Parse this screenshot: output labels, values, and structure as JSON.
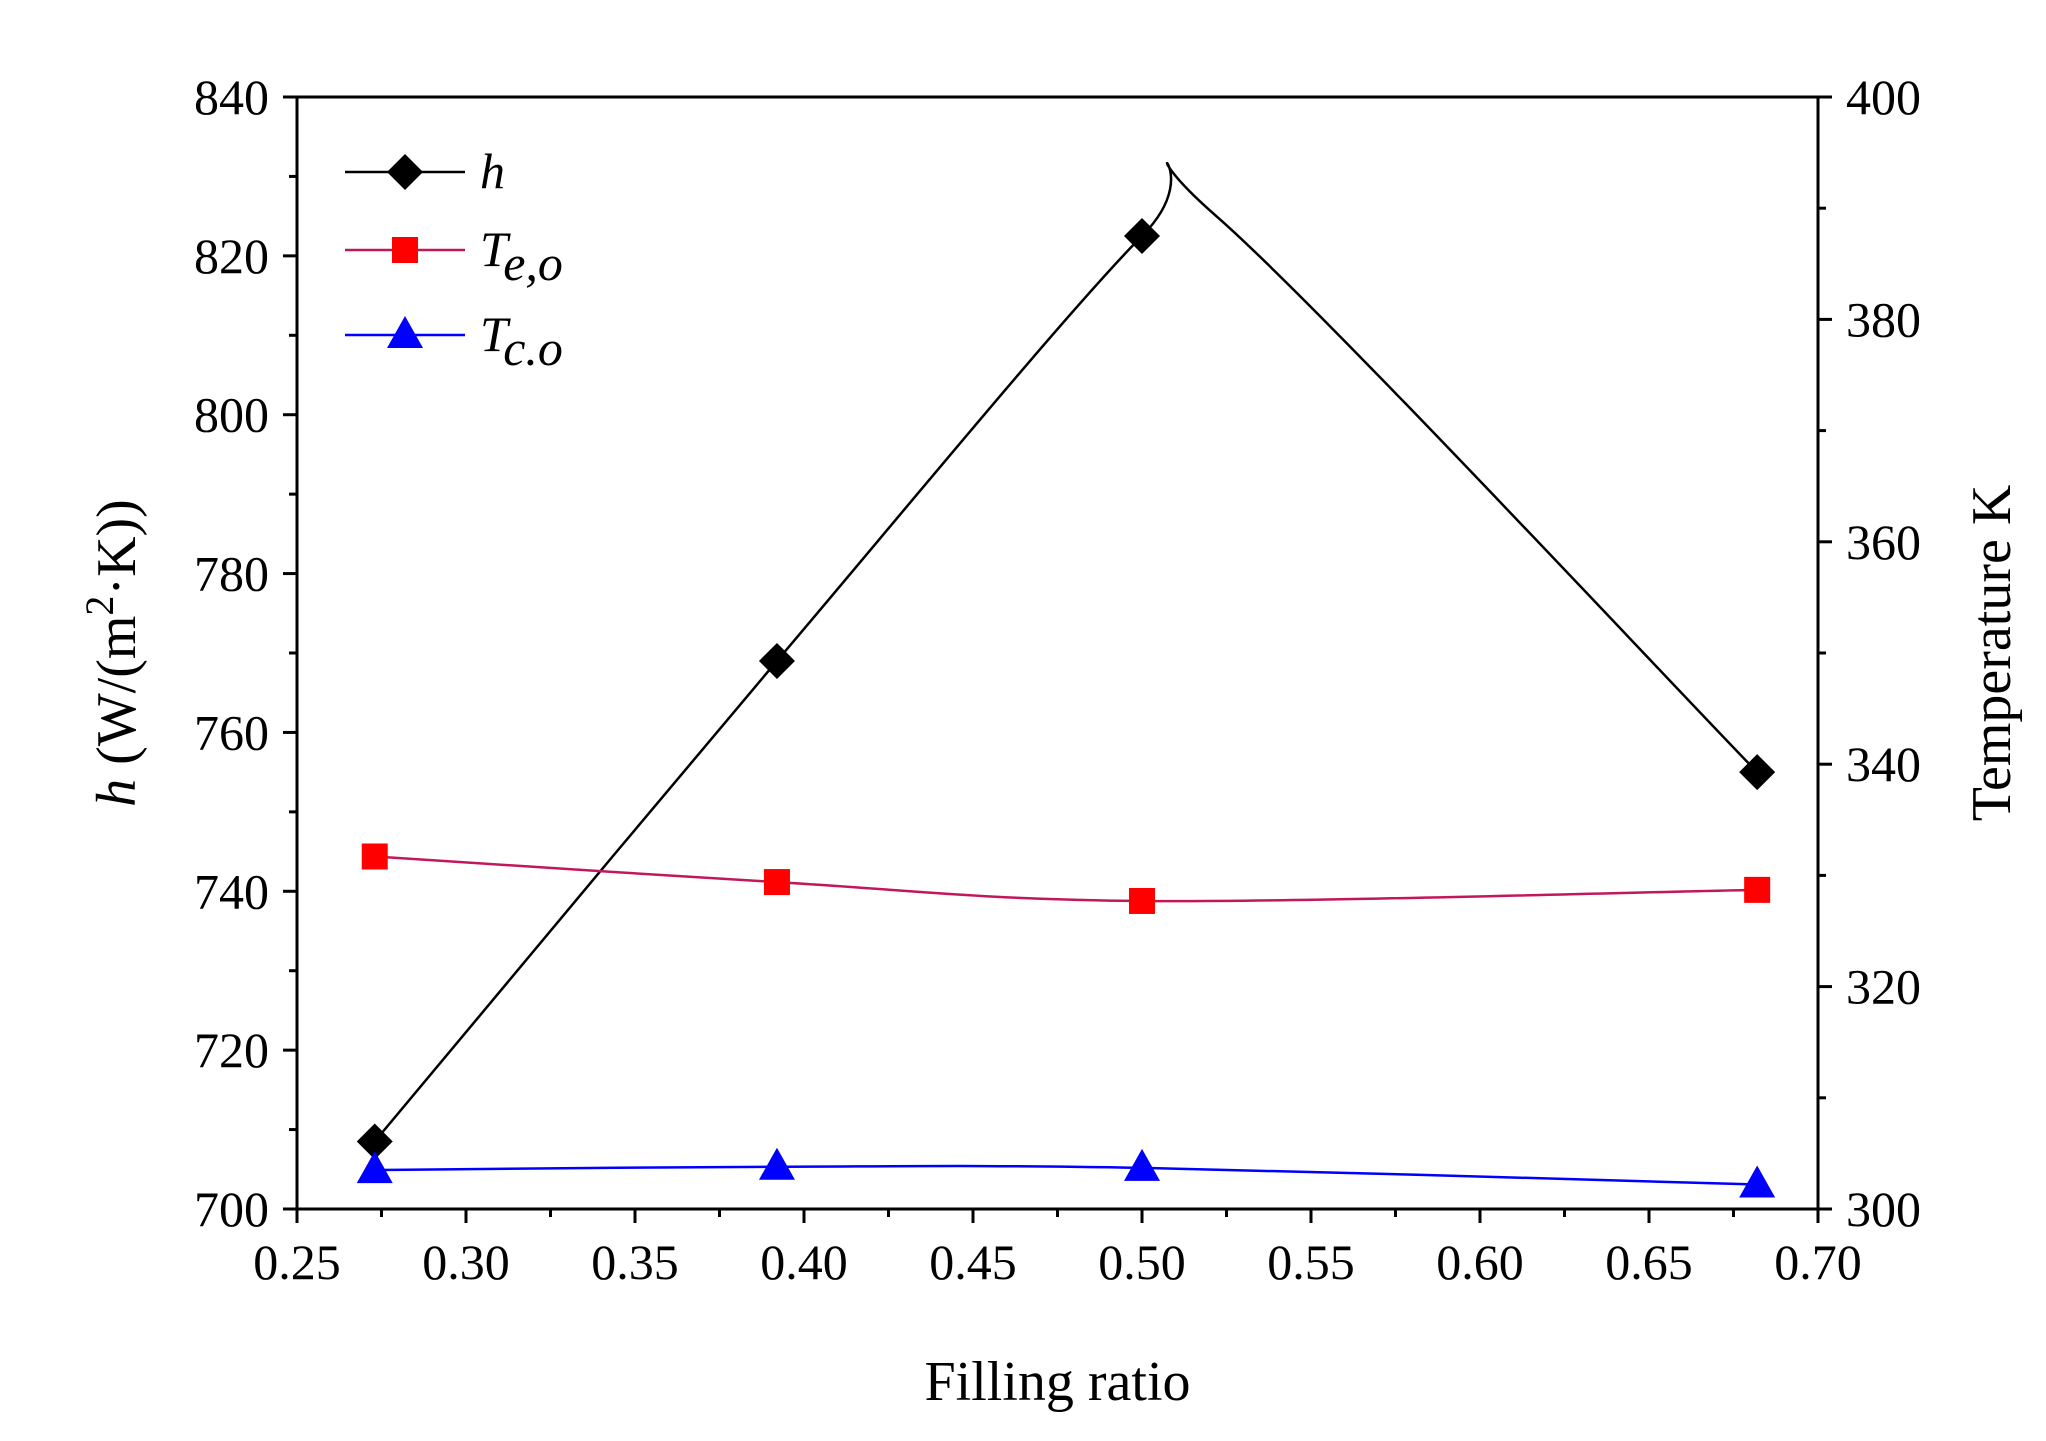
{
  "chart_data": {
    "type": "line",
    "title": "",
    "xlabel": "Filling ratio",
    "ylabel_left": {
      "var": "h",
      "unit_prefix": "(W/(m",
      "unit_sup": "2",
      "unit_suffix": "·K))"
    },
    "ylabel_right": "Temperature K",
    "x_ticks": [
      "0.25",
      "0.30",
      "0.35",
      "0.40",
      "0.45",
      "0.50",
      "0.55",
      "0.60",
      "0.65",
      "0.70"
    ],
    "y_left_ticks": [
      "700",
      "720",
      "740",
      "760",
      "780",
      "800",
      "820",
      "840"
    ],
    "y_right_ticks": [
      "300",
      "320",
      "340",
      "360",
      "380",
      "400"
    ],
    "xlim": [
      0.25,
      0.7
    ],
    "ylim_left": [
      700,
      840
    ],
    "ylim_right": [
      300,
      400
    ],
    "series": [
      {
        "name": "h",
        "legend_main": "h",
        "legend_sub": "",
        "axis": "left",
        "color": "#000000",
        "marker": "diamond",
        "x": [
          0.273,
          0.392,
          0.5,
          0.682
        ],
        "values": [
          708.5,
          769.0,
          822.5,
          755.0
        ],
        "smooth_curve_peak": [
          0.522,
          825.0
        ]
      },
      {
        "name": "Te,o",
        "legend_main": "T",
        "legend_sub": "e,o",
        "axis": "right",
        "color": "#ff0000",
        "line_color": "#c2185b",
        "marker": "square",
        "x": [
          0.273,
          0.392,
          0.5,
          0.682
        ],
        "values": [
          331.7,
          329.4,
          327.7,
          328.7
        ]
      },
      {
        "name": "Tc.o",
        "legend_main": "T",
        "legend_sub": "c.o",
        "axis": "right",
        "color": "#0000ff",
        "line_color": "#0000ff",
        "marker": "triangle",
        "x": [
          0.273,
          0.392,
          0.5,
          0.682
        ],
        "values": [
          303.5,
          303.8,
          303.7,
          302.2
        ]
      }
    ],
    "legend_position": "top-left",
    "grid": false
  }
}
